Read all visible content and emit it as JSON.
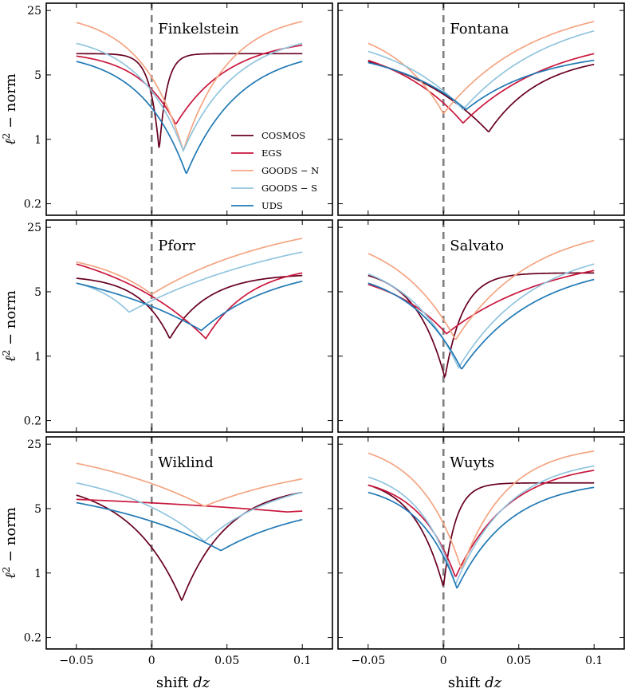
{
  "chart_data": {
    "type": "line",
    "x_axis_label": "shift dz",
    "x_axis_label_text": "shift ",
    "x_axis_label_var": "dz",
    "y_axis_label": "ℓ² − norm",
    "y_axis_label_base": "ℓ",
    "y_axis_label_sup": "2",
    "y_axis_label_rest": " − norm",
    "y_scale": "log",
    "xlim": [
      -0.07,
      0.12
    ],
    "ylim": [
      0.15,
      30
    ],
    "x_ticks": [
      -0.05,
      0,
      0.05,
      0.1
    ],
    "x_tick_labels": [
      "−0.05",
      "0",
      "0.05",
      "0.1"
    ],
    "y_ticks": [
      0.2,
      1,
      5,
      25
    ],
    "y_tick_labels": [
      "0.2",
      "1",
      "5",
      "25"
    ],
    "reference_line": {
      "x": 0,
      "style": "dashed",
      "color": "#808080"
    },
    "legend": {
      "panel": "Finkelstein",
      "placement": "center-right",
      "entries": [
        {
          "name": "COSMOS",
          "color": "#67001f"
        },
        {
          "name": "EGS",
          "color": "#c9173d"
        },
        {
          "name": "GOODS−N",
          "label": "GOODS − N",
          "color": "#f4a582"
        },
        {
          "name": "GOODS−S",
          "label": "GOODS − S",
          "color": "#92c5de"
        },
        {
          "name": "UDS",
          "label": "UDS",
          "color": "#2179b5"
        }
      ]
    },
    "curve_params": {
      "note": "each series approximated as y = floor + A(x)*(1-exp(-|x-x0|/w)) with asymmetric A/w on left/right of x0, in data units",
      "keys": [
        "x0",
        "y_min",
        "left_amp",
        "left_w",
        "right_amp",
        "right_w"
      ]
    },
    "panels": [
      {
        "title": "Finkelstein",
        "series": [
          {
            "name": "COSMOS",
            "x0": 0.005,
            "y_min": 0.75,
            "left_end": 8.5,
            "right_end": 8.5,
            "left_w": 0.006,
            "right_w": 0.005
          },
          {
            "name": "EGS",
            "x0": 0.016,
            "y_min": 1.45,
            "left_end": 8.0,
            "right_end": 10.5,
            "left_w": 0.025,
            "right_w": 0.035
          },
          {
            "name": "GOODS−N",
            "x0": 0.021,
            "y_min": 0.75,
            "left_end": 18.5,
            "right_end": 19.0,
            "left_w": 0.028,
            "right_w": 0.03
          },
          {
            "name": "GOODS−S",
            "x0": 0.021,
            "y_min": 0.75,
            "left_end": 11.0,
            "right_end": 11.0,
            "left_w": 0.03,
            "right_w": 0.035
          },
          {
            "name": "UDS",
            "x0": 0.023,
            "y_min": 0.42,
            "left_end": 7.0,
            "right_end": 7.0,
            "left_w": 0.03,
            "right_w": 0.035
          }
        ]
      },
      {
        "title": "Fontana",
        "series": [
          {
            "name": "COSMOS",
            "x0": 0.03,
            "y_min": 1.2,
            "left_end": 7.0,
            "right_end": 6.5,
            "left_w": 0.06,
            "right_w": 0.035
          },
          {
            "name": "EGS",
            "x0": 0.013,
            "y_min": 1.5,
            "left_end": 7.2,
            "right_end": 8.5,
            "left_w": 0.05,
            "right_w": 0.06
          },
          {
            "name": "GOODS−N",
            "x0": 0.0,
            "y_min": 1.9,
            "left_end": 11.0,
            "right_end": 19.0,
            "left_w": 0.035,
            "right_w": 0.06
          },
          {
            "name": "GOODS−S",
            "x0": 0.013,
            "y_min": 2.1,
            "left_end": 9.0,
            "right_end": 15.0,
            "left_w": 0.05,
            "right_w": 0.06
          },
          {
            "name": "UDS",
            "x0": 0.015,
            "y_min": 2.1,
            "left_end": 6.8,
            "right_end": 7.2,
            "left_w": 0.05,
            "right_w": 0.05
          }
        ]
      },
      {
        "title": "Pforr",
        "series": [
          {
            "name": "COSMOS",
            "x0": 0.012,
            "y_min": 1.55,
            "left_end": 7.0,
            "right_end": 7.5,
            "left_w": 0.02,
            "right_w": 0.025
          },
          {
            "name": "EGS",
            "x0": 0.036,
            "y_min": 1.55,
            "left_end": 10.0,
            "right_end": 8.0,
            "left_w": 0.07,
            "right_w": 0.03
          },
          {
            "name": "GOODS−N",
            "x0": 0.0,
            "y_min": 4.7,
            "left_end": 10.5,
            "right_end": 19.0,
            "left_w": 0.04,
            "right_w": 0.09
          },
          {
            "name": "GOODS−S",
            "x0": -0.015,
            "y_min": 3.0,
            "left_end": 6.2,
            "right_end": 13.5,
            "left_w": 0.025,
            "right_w": 0.12
          },
          {
            "name": "UDS",
            "x0": 0.033,
            "y_min": 1.9,
            "left_end": 6.2,
            "right_end": 6.5,
            "left_w": 0.09,
            "right_w": 0.05
          }
        ]
      },
      {
        "title": "Salvato",
        "series": [
          {
            "name": "COSMOS",
            "x0": 0.001,
            "y_min": 0.58,
            "left_end": 7.5,
            "right_end": 8.0,
            "left_w": 0.02,
            "right_w": 0.012
          },
          {
            "name": "EGS",
            "x0": 0.002,
            "y_min": 1.75,
            "left_end": 6.0,
            "right_end": 8.5,
            "left_w": 0.04,
            "right_w": 0.07
          },
          {
            "name": "GOODS−N",
            "x0": 0.008,
            "y_min": 1.5,
            "left_end": 13.0,
            "right_end": 18.0,
            "left_w": 0.04,
            "right_w": 0.05
          },
          {
            "name": "GOODS−S",
            "x0": 0.01,
            "y_min": 0.75,
            "left_end": 7.8,
            "right_end": 10.0,
            "left_w": 0.035,
            "right_w": 0.05
          },
          {
            "name": "UDS",
            "x0": 0.012,
            "y_min": 0.72,
            "left_end": 6.2,
            "right_end": 6.8,
            "left_w": 0.035,
            "right_w": 0.05
          }
        ]
      },
      {
        "title": "Wiklind",
        "series": [
          {
            "name": "COSMOS",
            "x0": 0.02,
            "y_min": 0.5,
            "left_end": 7.0,
            "right_end": 7.5,
            "left_w": 0.035,
            "right_w": 0.03
          },
          {
            "name": "EGS",
            "x0": 0.09,
            "y_min": 4.6,
            "left_end": 6.3,
            "right_end": 4.7,
            "left_w": 0.2,
            "right_w": 0.05
          },
          {
            "name": "GOODS−N",
            "x0": 0.035,
            "y_min": 5.3,
            "left_end": 15.5,
            "right_end": 10.5,
            "left_w": 0.09,
            "right_w": 0.08
          },
          {
            "name": "GOODS−S",
            "x0": 0.035,
            "y_min": 2.2,
            "left_end": 9.5,
            "right_end": 7.5,
            "left_w": 0.06,
            "right_w": 0.05
          },
          {
            "name": "UDS",
            "x0": 0.046,
            "y_min": 1.75,
            "left_end": 5.8,
            "right_end": 3.8,
            "left_w": 0.09,
            "right_w": 0.06
          }
        ]
      },
      {
        "title": "Wuyts",
        "series": [
          {
            "name": "COSMOS",
            "x0": 0.0,
            "y_min": 0.7,
            "left_end": 9.0,
            "right_end": 9.5,
            "left_w": 0.02,
            "right_w": 0.008
          },
          {
            "name": "EGS",
            "x0": 0.008,
            "y_min": 0.9,
            "left_end": 9.0,
            "right_end": 13.0,
            "left_w": 0.025,
            "right_w": 0.035
          },
          {
            "name": "GOODS−N",
            "x0": 0.012,
            "y_min": 1.1,
            "left_end": 20.0,
            "right_end": 21.0,
            "left_w": 0.028,
            "right_w": 0.03
          },
          {
            "name": "GOODS−S",
            "x0": 0.008,
            "y_min": 0.75,
            "left_end": 11.0,
            "right_end": 14.5,
            "left_w": 0.025,
            "right_w": 0.035
          },
          {
            "name": "UDS",
            "x0": 0.009,
            "y_min": 0.68,
            "left_end": 7.5,
            "right_end": 8.5,
            "left_w": 0.025,
            "right_w": 0.035
          }
        ]
      }
    ]
  }
}
